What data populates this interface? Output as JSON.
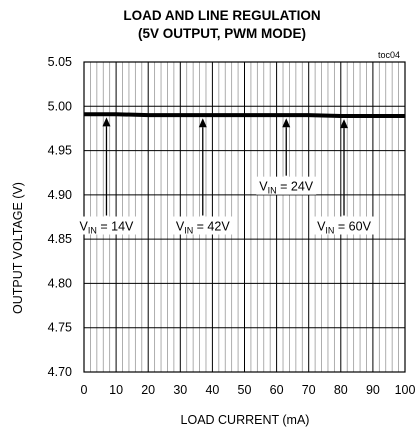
{
  "chart_data": {
    "type": "line",
    "title_line1": "LOAD AND LINE REGULATION",
    "title_line2": "(5V OUTPUT, PWM MODE)",
    "figure_code": "toc04",
    "xlabel": "LOAD CURRENT (mA)",
    "ylabel": "OUTPUT VOLTAGE (V)",
    "xlim": [
      0,
      100
    ],
    "ylim": [
      4.7,
      5.05
    ],
    "x_ticks": [
      "0",
      "10",
      "20",
      "30",
      "40",
      "50",
      "60",
      "70",
      "80",
      "90",
      "100"
    ],
    "y_ticks": [
      "4.70",
      "4.75",
      "4.80",
      "4.85",
      "4.90",
      "4.95",
      "5.00",
      "5.05"
    ],
    "grid": true,
    "series": [
      {
        "values": [
          4.991,
          4.991,
          4.99,
          4.99,
          4.99,
          4.99,
          4.99,
          4.99,
          4.989,
          4.989,
          4.989
        ],
        "x": [
          0,
          10,
          20,
          30,
          40,
          50,
          60,
          70,
          80,
          90,
          100
        ]
      }
    ],
    "annotations": [
      {
        "main": "V",
        "sub": "IN",
        "rest": " = 14V",
        "x": 7,
        "y": 4.862,
        "arrow_to_y": 4.992
      },
      {
        "main": "V",
        "sub": "IN",
        "rest": " = 42V",
        "x": 37,
        "y": 4.862,
        "arrow_to_y": 4.991
      },
      {
        "main": "V",
        "sub": "IN",
        "rest": " = 24V",
        "x": 63,
        "y": 4.907,
        "arrow_to_y": 4.991
      },
      {
        "main": "V",
        "sub": "IN",
        "rest": " = 60V",
        "x": 81,
        "y": 4.862,
        "arrow_to_y": 4.99
      }
    ]
  }
}
